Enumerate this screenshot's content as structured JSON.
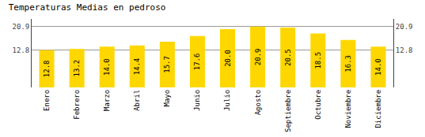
{
  "chart_data": {
    "type": "bar",
    "title": "Temperaturas Medias en pedroso",
    "categories": [
      "Enero",
      "Febrero",
      "Marzo",
      "Abril",
      "Mayo",
      "Junio",
      "Julio",
      "Agosto",
      "Septiembre",
      "Octubre",
      "Noviembre",
      "Diciembre"
    ],
    "values": [
      12.8,
      13.2,
      14.0,
      14.4,
      15.7,
      17.6,
      20.0,
      20.9,
      20.5,
      18.5,
      16.3,
      14.0
    ],
    "value_labels": [
      "12.8",
      "13.2",
      "14.0",
      "14.4",
      "15.7",
      "17.6",
      "20.0",
      "20.9",
      "20.5",
      "18.5",
      "16.3",
      "14.0"
    ],
    "color": "#FFD700",
    "ylim": [
      0,
      23.5
    ],
    "yticks": [
      12.8,
      20.9
    ],
    "grid": true,
    "data_labels": true
  }
}
